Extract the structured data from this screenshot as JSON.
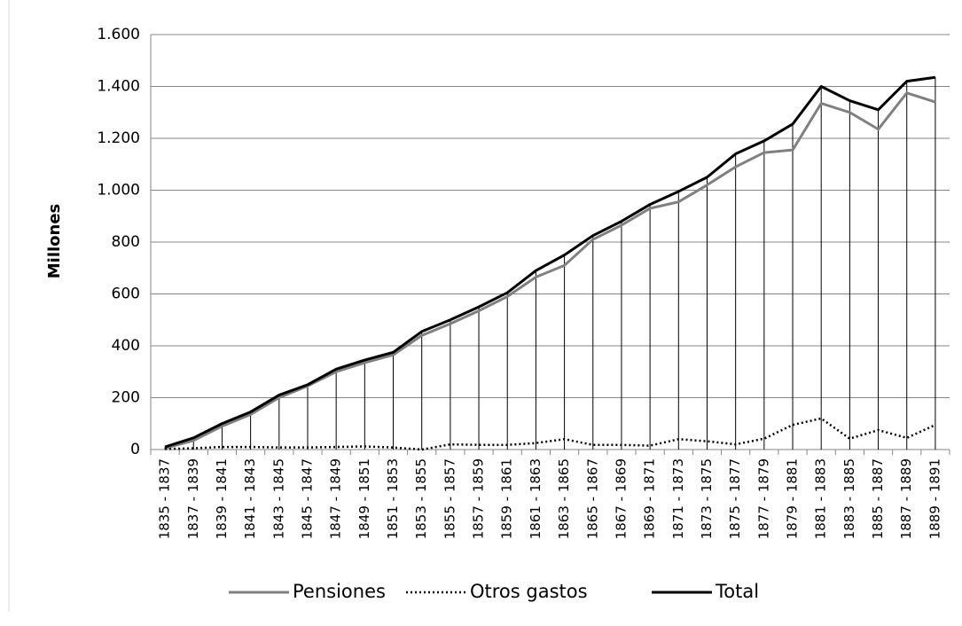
{
  "chart_data": {
    "type": "line",
    "y_label": "Millones",
    "categories": [
      "1835 - 1837",
      "1837 - 1839",
      "1839 - 1841",
      "1841 - 1843",
      "1843 - 1845",
      "1845 - 1847",
      "1847 - 1849",
      "1849 - 1851",
      "1851 - 1853",
      "1853 - 1855",
      "1855 - 1857",
      "1857 - 1859",
      "1859 - 1861",
      "1861 - 1863",
      "1863 - 1865",
      "1865 - 1867",
      "1867 - 1869",
      "1869 - 1871",
      "1871 - 1873",
      "1873 - 1875",
      "1875 - 1877",
      "1877 - 1879",
      "1879 - 1881",
      "1881 - 1883",
      "1883 - 1885",
      "1885 - 1887",
      "1887 - 1889",
      "1889 - 1891"
    ],
    "series": [
      {
        "name": "Pensiones",
        "color": "#808080",
        "style": "solid",
        "values": [
          5,
          35,
          90,
          135,
          200,
          245,
          300,
          335,
          365,
          440,
          485,
          535,
          590,
          665,
          710,
          810,
          865,
          930,
          955,
          1020,
          1090,
          1145,
          1155,
          1335,
          1300,
          1235,
          1375,
          1340
        ]
      },
      {
        "name": "Otros gastos",
        "color": "#000000",
        "style": "dotted",
        "values": [
          2,
          5,
          10,
          10,
          8,
          8,
          10,
          12,
          8,
          0,
          20,
          18,
          18,
          25,
          40,
          18,
          18,
          15,
          40,
          32,
          20,
          42,
          95,
          120,
          42,
          75,
          45,
          95
        ]
      },
      {
        "name": "Total",
        "color": "#000000",
        "style": "solid",
        "values": [
          10,
          45,
          100,
          145,
          210,
          250,
          310,
          345,
          375,
          455,
          500,
          550,
          605,
          690,
          750,
          825,
          880,
          945,
          995,
          1050,
          1140,
          1190,
          1255,
          1400,
          1345,
          1310,
          1420,
          1435
        ]
      }
    ],
    "drop_lines": true,
    "ylim": [
      0,
      1600
    ],
    "yticks": [
      0,
      200,
      400,
      600,
      800,
      {
        "value": 1000,
        "label": "1.000"
      },
      {
        "value": 1200,
        "label": "1.200"
      },
      {
        "value": 1400,
        "label": "1.400"
      },
      {
        "value": 1600,
        "label": "1.600"
      }
    ],
    "grid": true,
    "legend": "bottom"
  }
}
